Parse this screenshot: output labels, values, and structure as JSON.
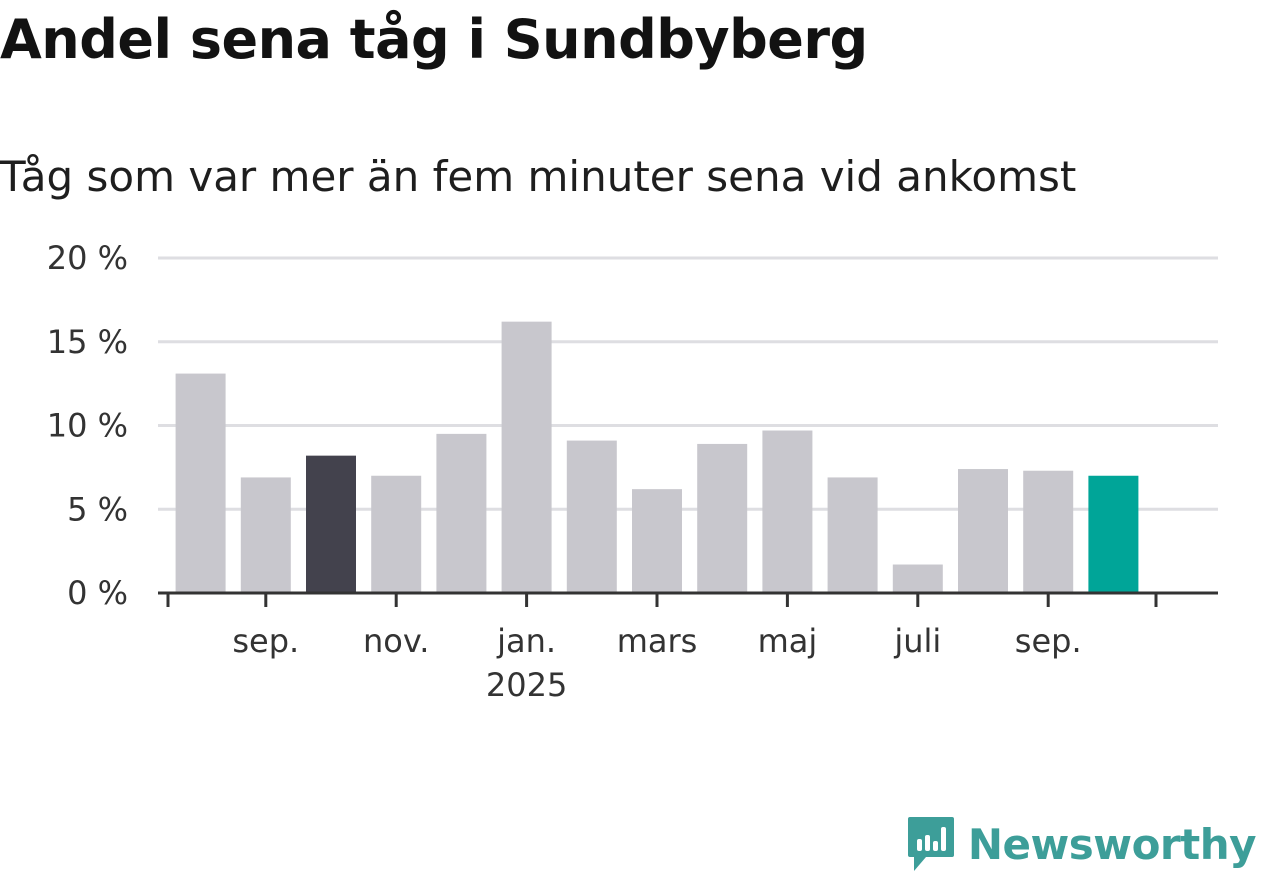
{
  "title": "Andel sena tåg i Sundbyberg",
  "subtitle": "Tåg som var mer än fem minuter sena vid ankomst",
  "colors": {
    "bar_default": "#c8c7cd",
    "bar_highlight_dark": "#43424d",
    "bar_highlight_current": "#00a598",
    "grid": "#dedee2",
    "axis": "#333333",
    "logo": "#3d9e99"
  },
  "logo": {
    "text": "Newsworthy",
    "icon": "newsworthy-badge-icon"
  },
  "chart_data": {
    "type": "bar",
    "unit": "%",
    "ylim": [
      0,
      20
    ],
    "yticks": [
      0,
      5,
      10,
      15,
      20
    ],
    "ytick_labels": [
      "0 %",
      "5 %",
      "10 %",
      "15 %",
      "20 %"
    ],
    "grid": true,
    "categories": [
      "2024-08",
      "2024-09",
      "2024-10",
      "2024-11",
      "2024-12",
      "2025-01",
      "2025-02",
      "2025-03",
      "2025-04",
      "2025-05",
      "2025-06",
      "2025-07",
      "2025-08",
      "2025-09",
      "2025-10"
    ],
    "values": [
      13.1,
      6.9,
      8.2,
      7.0,
      9.5,
      16.2,
      9.1,
      6.2,
      8.9,
      9.7,
      6.9,
      1.7,
      7.4,
      7.3,
      7.0
    ],
    "highlight": [
      "default",
      "default",
      "dark",
      "default",
      "default",
      "default",
      "default",
      "default",
      "default",
      "default",
      "default",
      "default",
      "default",
      "default",
      "current"
    ],
    "x_tick_labels": [
      {
        "date": "2024-09",
        "label": "sep.",
        "sublabel": ""
      },
      {
        "date": "2024-11",
        "label": "nov.",
        "sublabel": ""
      },
      {
        "date": "2025-01",
        "label": "jan.",
        "sublabel": "2025"
      },
      {
        "date": "2025-03",
        "label": "mars",
        "sublabel": ""
      },
      {
        "date": "2025-05",
        "label": "maj",
        "sublabel": ""
      },
      {
        "date": "2025-07",
        "label": "juli",
        "sublabel": ""
      },
      {
        "date": "2025-09",
        "label": "sep.",
        "sublabel": ""
      }
    ],
    "xlabel": "",
    "ylabel": ""
  }
}
